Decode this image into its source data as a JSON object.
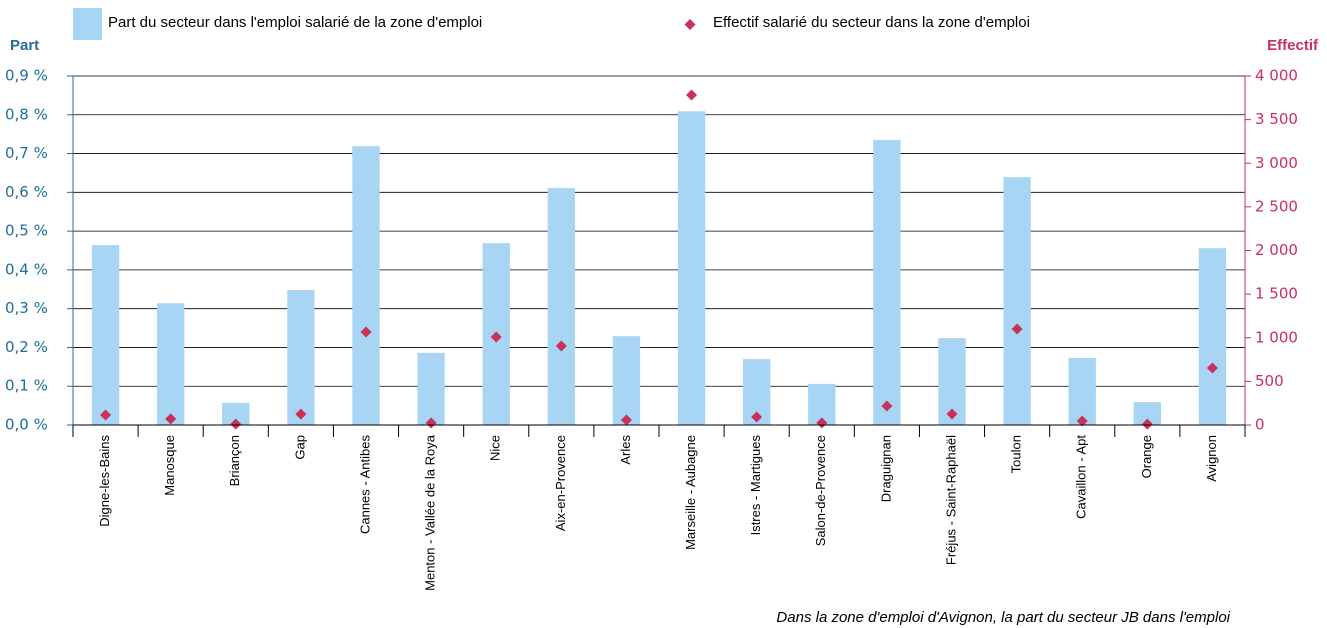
{
  "chart_data": {
    "type": "bar",
    "categories": [
      "Digne-les-Bains",
      "Manosque",
      "Briançon",
      "Gap",
      "Cannes - Antibes",
      "Menton - Vallée de la Roya",
      "Nice",
      "Aix-en-Provence",
      "Arles",
      "Marseille - Aubagne",
      "Istres - Martigues",
      "Salon-de-Provence",
      "Draguignan",
      "Fréjus - Saint-Raphaël",
      "Toulon",
      "Cavaillon - Apt",
      "Orange",
      "Avignon"
    ],
    "series": [
      {
        "name": "Part du secteur dans l'emploi salarié de la zone d'emploi",
        "type": "bar",
        "color": "#a9d5f5",
        "axis": "y",
        "values": [
          0.464,
          0.314,
          0.057,
          0.348,
          0.719,
          0.186,
          0.469,
          0.611,
          0.229,
          0.809,
          0.17,
          0.106,
          0.735,
          0.224,
          0.639,
          0.173,
          0.059,
          0.456
        ]
      },
      {
        "name": "Effectif salarié du secteur dans la zone d'emploi",
        "type": "scatter",
        "color": "#c9305a",
        "axis": "y2",
        "values": [
          115,
          70,
          10,
          125,
          1066,
          25,
          1009,
          906,
          57,
          3782,
          92,
          25,
          218,
          126,
          1100,
          46,
          10,
          654
        ]
      }
    ],
    "ylabel": "Part",
    "y2label": "Effectif",
    "ylim": [
      0,
      0.9
    ],
    "yticks": [
      {
        "value": 0,
        "label": "0,0 %"
      },
      {
        "value": 0.1,
        "label": "0,1 %"
      },
      {
        "value": 0.2,
        "label": "0,2 %"
      },
      {
        "value": 0.3,
        "label": "0,3 %"
      },
      {
        "value": 0.4,
        "label": "0,4 %"
      },
      {
        "value": 0.5,
        "label": "0,5 %"
      },
      {
        "value": 0.6,
        "label": "0,6 %"
      },
      {
        "value": 0.7,
        "label": "0,7 %"
      },
      {
        "value": 0.8,
        "label": "0,8 %"
      },
      {
        "value": 0.9,
        "label": "0,9 %"
      }
    ],
    "y2lim": [
      0,
      4000
    ],
    "y2ticks": [
      0,
      {
        "value": 500,
        "label": "500"
      },
      {
        "value": 1000,
        "label": "1 000"
      },
      {
        "value": 1500,
        "label": "1 500"
      },
      {
        "value": 2000,
        "label": "2 000"
      },
      {
        "value": 2500,
        "label": "2 500"
      },
      {
        "value": 3000,
        "label": "3 000"
      },
      {
        "value": 3500,
        "label": "3 500"
      },
      {
        "value": 4000,
        "label": "4 000"
      }
    ],
    "grid": true,
    "note": "Dans la zone d'emploi d'Avignon, la part du secteur JB dans l'emploi",
    "ycolor": "#1f6f9b",
    "y2color": "#c9305a"
  }
}
